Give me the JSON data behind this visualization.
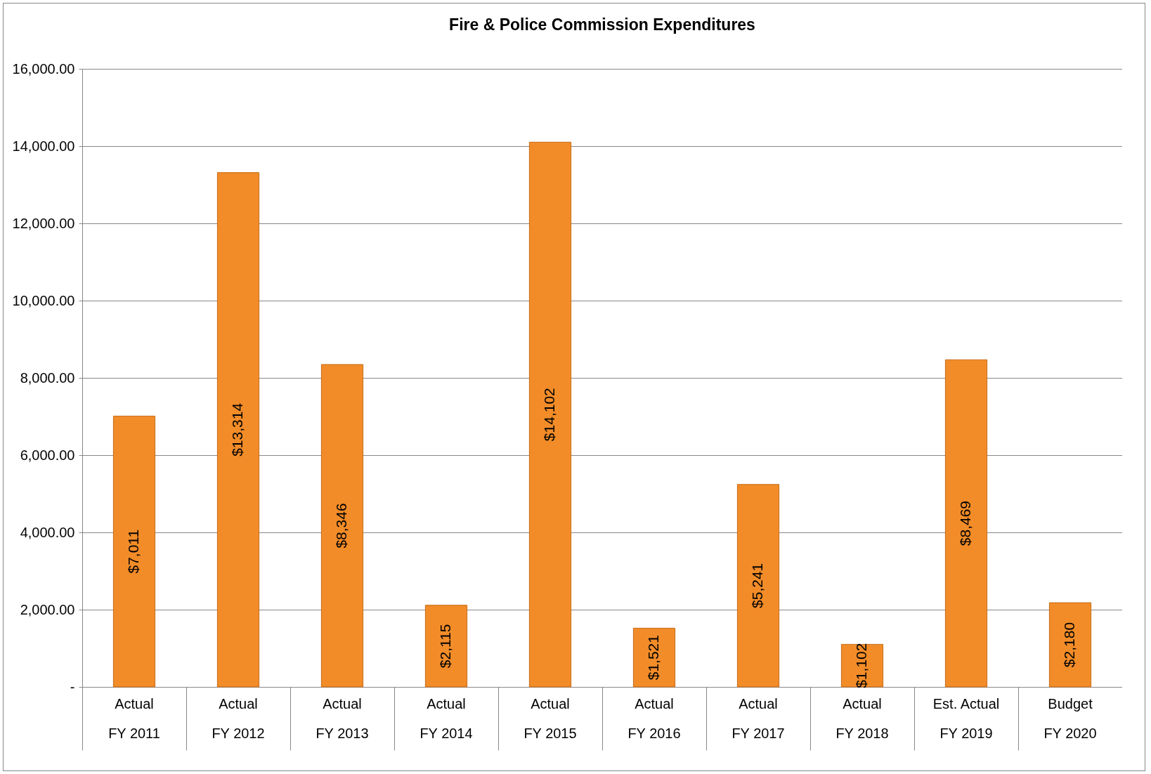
{
  "chart_data": {
    "type": "bar",
    "title": "Fire & Police Commission Expenditures",
    "categories": [
      "Actual\nFY 2011",
      "Actual\nFY 2012",
      "Actual\nFY 2013",
      "Actual\nFY 2014",
      "Actual\nFY 2015",
      "Actual\nFY 2016",
      "Actual\nFY 2017",
      "Actual\nFY 2018",
      "Est. Actual\nFY 2019",
      "Budget\nFY 2020"
    ],
    "values": [
      7011,
      13314,
      8346,
      2115,
      14102,
      1521,
      5241,
      1102,
      8469,
      2180
    ],
    "value_labels": [
      "$7,011",
      "$13,314",
      "$8,346",
      "$2,115",
      "$14,102",
      "$1,521",
      "$5,241",
      "$1,102",
      "$8,469",
      "$2,180"
    ],
    "color": "#f28c28",
    "ylim": [
      0,
      16000
    ],
    "yticks": [
      {
        "value": 0,
        "label": "-"
      },
      {
        "value": 2000,
        "label": "2,000.00"
      },
      {
        "value": 4000,
        "label": "4,000.00"
      },
      {
        "value": 6000,
        "label": "6,000.00"
      },
      {
        "value": 8000,
        "label": "8,000.00"
      },
      {
        "value": 10000,
        "label": "10,000.00"
      },
      {
        "value": 12000,
        "label": "12,000.00"
      },
      {
        "value": 14000,
        "label": "14,000.00"
      },
      {
        "value": 16000,
        "label": "16,000.00"
      }
    ],
    "grid": "y"
  }
}
